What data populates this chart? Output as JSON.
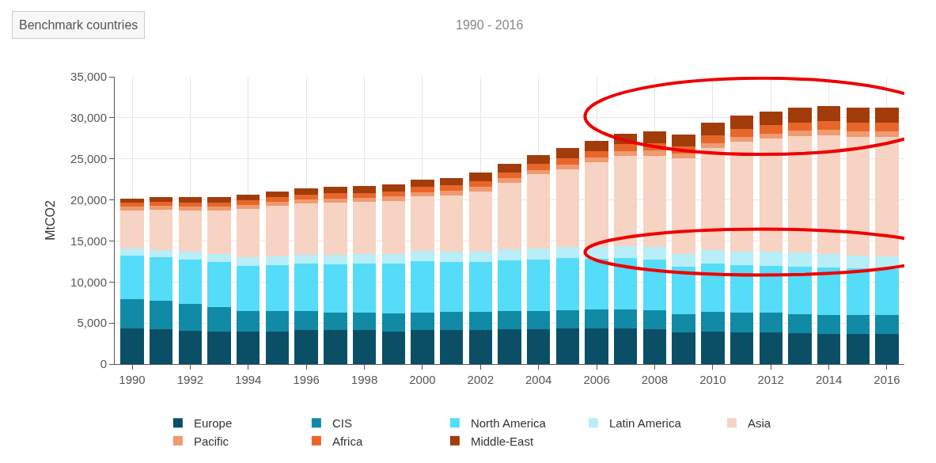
{
  "chart_data": {
    "type": "bar",
    "stacked": true,
    "ylabel": "MtCO2",
    "categories": [
      "1990",
      null,
      "1992",
      null,
      "1994",
      null,
      "1996",
      null,
      "1998",
      null,
      "2000",
      null,
      "2002",
      null,
      "2004",
      null,
      "2006",
      null,
      "2008",
      null,
      "2010",
      null,
      "2012",
      null,
      "2014",
      null,
      "2016"
    ],
    "series": [
      {
        "name": "Europe",
        "color": "#0b4f66",
        "values": [
          4300,
          4200,
          4050,
          4000,
          4000,
          4000,
          4100,
          4100,
          4100,
          4000,
          4100,
          4100,
          4100,
          4200,
          4200,
          4300,
          4300,
          4300,
          4200,
          3900,
          4000,
          3900,
          3900,
          3800,
          3650,
          3650,
          3650
        ]
      },
      {
        "name": "CIS",
        "color": "#118aa6",
        "values": [
          3600,
          3500,
          3300,
          2950,
          2500,
          2450,
          2350,
          2150,
          2150,
          2200,
          2200,
          2250,
          2250,
          2300,
          2300,
          2300,
          2350,
          2350,
          2400,
          2200,
          2350,
          2350,
          2400,
          2300,
          2300,
          2300,
          2300
        ]
      },
      {
        "name": "North America",
        "color": "#55dcf8",
        "values": [
          5300,
          5300,
          5400,
          5500,
          5500,
          5600,
          5800,
          5900,
          5950,
          6000,
          6200,
          6100,
          6050,
          6150,
          6250,
          6300,
          6200,
          6250,
          6100,
          5800,
          5900,
          5800,
          5700,
          5800,
          5850,
          5700,
          5600
        ]
      },
      {
        "name": "Latin America",
        "color": "#b7eef8",
        "values": [
          900,
          900,
          950,
          950,
          1000,
          1050,
          1100,
          1150,
          1200,
          1200,
          1250,
          1250,
          1250,
          1300,
          1350,
          1400,
          1450,
          1500,
          1550,
          1550,
          1600,
          1650,
          1650,
          1650,
          1650,
          1600,
          1600
        ]
      },
      {
        "name": "Asia",
        "color": "#f6d3c3",
        "values": [
          4600,
          4900,
          5050,
          5300,
          5900,
          6150,
          6250,
          6400,
          6350,
          6500,
          6650,
          6850,
          7400,
          8150,
          9000,
          9400,
          10250,
          10950,
          11150,
          11600,
          12450,
          13350,
          13800,
          14200,
          14400,
          14400,
          14500
        ]
      },
      {
        "name": "Pacific",
        "color": "#ef9a70",
        "values": [
          450,
          450,
          450,
          450,
          500,
          500,
          500,
          500,
          500,
          500,
          550,
          550,
          550,
          550,
          550,
          600,
          600,
          600,
          600,
          600,
          600,
          650,
          650,
          650,
          650,
          650,
          650
        ]
      },
      {
        "name": "Africa",
        "color": "#e8662a",
        "values": [
          500,
          500,
          500,
          500,
          550,
          550,
          550,
          600,
          600,
          600,
          650,
          650,
          700,
          700,
          750,
          800,
          800,
          850,
          900,
          900,
          950,
          950,
          1000,
          1050,
          1100,
          1100,
          1100
        ]
      },
      {
        "name": "Middle-East",
        "color": "#a33c0b",
        "values": [
          550,
          550,
          600,
          650,
          650,
          700,
          750,
          800,
          850,
          900,
          900,
          950,
          1000,
          1050,
          1100,
          1200,
          1250,
          1300,
          1400,
          1450,
          1550,
          1650,
          1700,
          1750,
          1800,
          1800,
          1800
        ]
      }
    ],
    "ylim": [
      0,
      35000
    ],
    "yticks": [
      0,
      {
        "value": 5000,
        "label": "5,000"
      },
      {
        "value": 10000,
        "label": "10,000"
      },
      {
        "value": 15000,
        "label": "15,000"
      },
      {
        "value": 20000,
        "label": "20,000"
      },
      {
        "value": 25000,
        "label": "25,000"
      },
      {
        "value": 30000,
        "label": "30,000"
      },
      {
        "value": 35000,
        "label": "35,000"
      }
    ],
    "grid": true,
    "legend": "bottom",
    "annotations": [
      "Benchmark countries",
      "1990 - 2016"
    ]
  }
}
